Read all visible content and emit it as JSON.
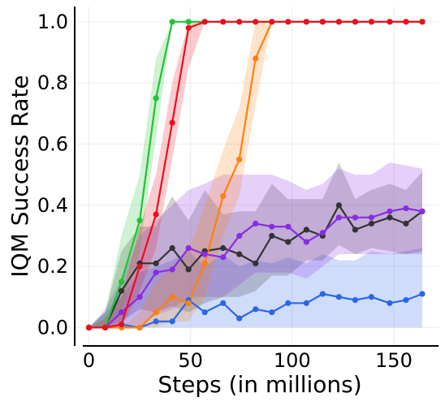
{
  "chart_data": {
    "type": "line",
    "title": "",
    "xlabel": "Steps (in millions)",
    "ylabel": "IQM Success Rate",
    "xlim": [
      -7,
      172
    ],
    "ylim": [
      -0.06,
      1.05
    ],
    "xticks": [
      0,
      50,
      100,
      150
    ],
    "yticks": [
      0.0,
      0.2,
      0.4,
      0.6,
      0.8,
      1.0
    ],
    "xtick_labels": [
      "0",
      "50",
      "100",
      "150"
    ],
    "ytick_labels": [
      "0.0",
      "0.2",
      "0.4",
      "0.6",
      "0.8",
      "1.0"
    ],
    "grid": true,
    "legend": "none",
    "series": [
      {
        "color": "#2b66e8",
        "x": [
          0,
          8,
          16,
          25,
          33,
          41,
          49,
          57,
          66,
          74,
          82,
          90,
          98,
          107,
          115,
          123,
          131,
          139,
          148,
          156,
          164
        ],
        "y": [
          0.0,
          0.0,
          0.01,
          0.0,
          0.02,
          0.02,
          0.09,
          0.05,
          0.08,
          0.03,
          0.06,
          0.05,
          0.08,
          0.08,
          0.11,
          0.1,
          0.09,
          0.1,
          0.08,
          0.09,
          0.11
        ],
        "lower": [
          0.0,
          0.0,
          0.0,
          0.0,
          0.0,
          0.0,
          0.0,
          0.0,
          0.0,
          0.0,
          0.0,
          0.0,
          0.0,
          0.0,
          0.0,
          0.0,
          0.0,
          0.0,
          0.0,
          0.0,
          0.0
        ],
        "upper": [
          0.0,
          0.05,
          0.1,
          0.18,
          0.2,
          0.22,
          0.25,
          0.2,
          0.24,
          0.2,
          0.22,
          0.21,
          0.23,
          0.21,
          0.24,
          0.22,
          0.22,
          0.25,
          0.24,
          0.25,
          0.26
        ]
      },
      {
        "color": "#333333",
        "x": [
          0,
          8,
          16,
          25,
          33,
          41,
          49,
          57,
          66,
          74,
          82,
          90,
          98,
          107,
          115,
          123,
          131,
          139,
          148,
          156,
          164
        ],
        "y": [
          0.0,
          0.0,
          0.12,
          0.21,
          0.21,
          0.26,
          0.19,
          0.25,
          0.26,
          0.24,
          0.21,
          0.3,
          0.28,
          0.32,
          0.3,
          0.4,
          0.32,
          0.34,
          0.36,
          0.34,
          0.38
        ],
        "lower": [
          0.0,
          0.0,
          0.02,
          0.06,
          0.05,
          0.07,
          0.05,
          0.08,
          0.1,
          0.1,
          0.12,
          0.17,
          0.17,
          0.22,
          0.22,
          0.27,
          0.24,
          0.26,
          0.25,
          0.24,
          0.25
        ],
        "upper": [
          0.0,
          0.05,
          0.25,
          0.33,
          0.33,
          0.43,
          0.35,
          0.45,
          0.37,
          0.38,
          0.38,
          0.47,
          0.42,
          0.42,
          0.42,
          0.54,
          0.42,
          0.45,
          0.47,
          0.45,
          0.51
        ]
      },
      {
        "color": "#8a2be2",
        "x": [
          0,
          8,
          16,
          25,
          33,
          41,
          49,
          57,
          66,
          74,
          82,
          90,
          98,
          107,
          115,
          123,
          131,
          139,
          148,
          156,
          164
        ],
        "y": [
          0.0,
          0.0,
          0.05,
          0.1,
          0.18,
          0.19,
          0.26,
          0.24,
          0.23,
          0.3,
          0.34,
          0.33,
          0.33,
          0.28,
          0.31,
          0.36,
          0.36,
          0.36,
          0.38,
          0.39,
          0.38
        ],
        "lower": [
          0.0,
          0.0,
          0.0,
          0.01,
          0.04,
          0.06,
          0.1,
          0.1,
          0.1,
          0.14,
          0.18,
          0.18,
          0.18,
          0.16,
          0.2,
          0.24,
          0.24,
          0.24,
          0.24,
          0.24,
          0.24
        ],
        "upper": [
          0.0,
          0.06,
          0.16,
          0.3,
          0.35,
          0.4,
          0.45,
          0.47,
          0.5,
          0.5,
          0.5,
          0.5,
          0.48,
          0.45,
          0.47,
          0.52,
          0.5,
          0.5,
          0.54,
          0.53,
          0.52
        ]
      },
      {
        "color": "#ff7f0e",
        "x": [
          0,
          8,
          16,
          25,
          33,
          41,
          49,
          57,
          66,
          74,
          82,
          90,
          98,
          107,
          115,
          123,
          131,
          139,
          148,
          156,
          164
        ],
        "y": [
          0.0,
          0.0,
          0.0,
          0.0,
          0.05,
          0.1,
          0.08,
          0.21,
          0.43,
          0.55,
          0.88,
          1.0,
          1.0,
          1.0,
          1.0,
          1.0,
          1.0,
          1.0,
          1.0,
          1.0,
          1.0
        ],
        "lower": [
          0.0,
          0.0,
          0.0,
          0.0,
          0.0,
          0.02,
          0.02,
          0.1,
          0.3,
          0.43,
          0.73,
          1.0,
          1.0,
          1.0,
          1.0,
          1.0,
          1.0,
          1.0,
          1.0,
          1.0,
          1.0
        ],
        "upper": [
          0.0,
          0.0,
          0.0,
          0.05,
          0.15,
          0.2,
          0.25,
          0.4,
          0.58,
          0.72,
          1.0,
          1.0,
          1.0,
          1.0,
          1.0,
          1.0,
          1.0,
          1.0,
          1.0,
          1.0,
          1.0
        ]
      },
      {
        "color": "#22c233",
        "x": [
          0,
          8,
          16,
          25,
          33,
          41,
          49,
          57,
          66,
          74,
          82,
          90,
          98,
          107,
          115,
          123,
          131,
          139,
          148,
          156,
          164
        ],
        "y": [
          0.0,
          0.0,
          0.15,
          0.35,
          0.75,
          1.0,
          1.0,
          1.0,
          1.0,
          1.0,
          1.0,
          1.0,
          1.0,
          1.0,
          1.0,
          1.0,
          1.0,
          1.0,
          1.0,
          1.0,
          1.0
        ],
        "lower": [
          0.0,
          0.0,
          0.06,
          0.25,
          0.62,
          1.0,
          1.0,
          1.0,
          1.0,
          1.0,
          1.0,
          1.0,
          1.0,
          1.0,
          1.0,
          1.0,
          1.0,
          1.0,
          1.0,
          1.0,
          1.0
        ],
        "upper": [
          0.0,
          0.05,
          0.3,
          0.5,
          0.88,
          1.0,
          1.0,
          1.0,
          1.0,
          1.0,
          1.0,
          1.0,
          1.0,
          1.0,
          1.0,
          1.0,
          1.0,
          1.0,
          1.0,
          1.0,
          1.0
        ]
      },
      {
        "color": "#e8101e",
        "x": [
          0,
          8,
          16,
          25,
          33,
          41,
          49,
          57,
          66,
          74,
          82,
          90,
          98,
          107,
          115,
          123,
          131,
          139,
          148,
          156,
          164
        ],
        "y": [
          0.0,
          0.0,
          0.01,
          0.2,
          0.37,
          0.67,
          0.98,
          1.0,
          1.0,
          1.0,
          1.0,
          1.0,
          1.0,
          1.0,
          1.0,
          1.0,
          1.0,
          1.0,
          1.0,
          1.0,
          1.0
        ],
        "lower": [
          0.0,
          0.0,
          0.0,
          0.12,
          0.26,
          0.55,
          0.85,
          1.0,
          1.0,
          1.0,
          1.0,
          1.0,
          1.0,
          1.0,
          1.0,
          1.0,
          1.0,
          1.0,
          1.0,
          1.0,
          1.0
        ],
        "upper": [
          0.0,
          0.03,
          0.1,
          0.33,
          0.5,
          0.8,
          1.0,
          1.0,
          1.0,
          1.0,
          1.0,
          1.0,
          1.0,
          1.0,
          1.0,
          1.0,
          1.0,
          1.0,
          1.0,
          1.0,
          1.0
        ]
      }
    ]
  }
}
